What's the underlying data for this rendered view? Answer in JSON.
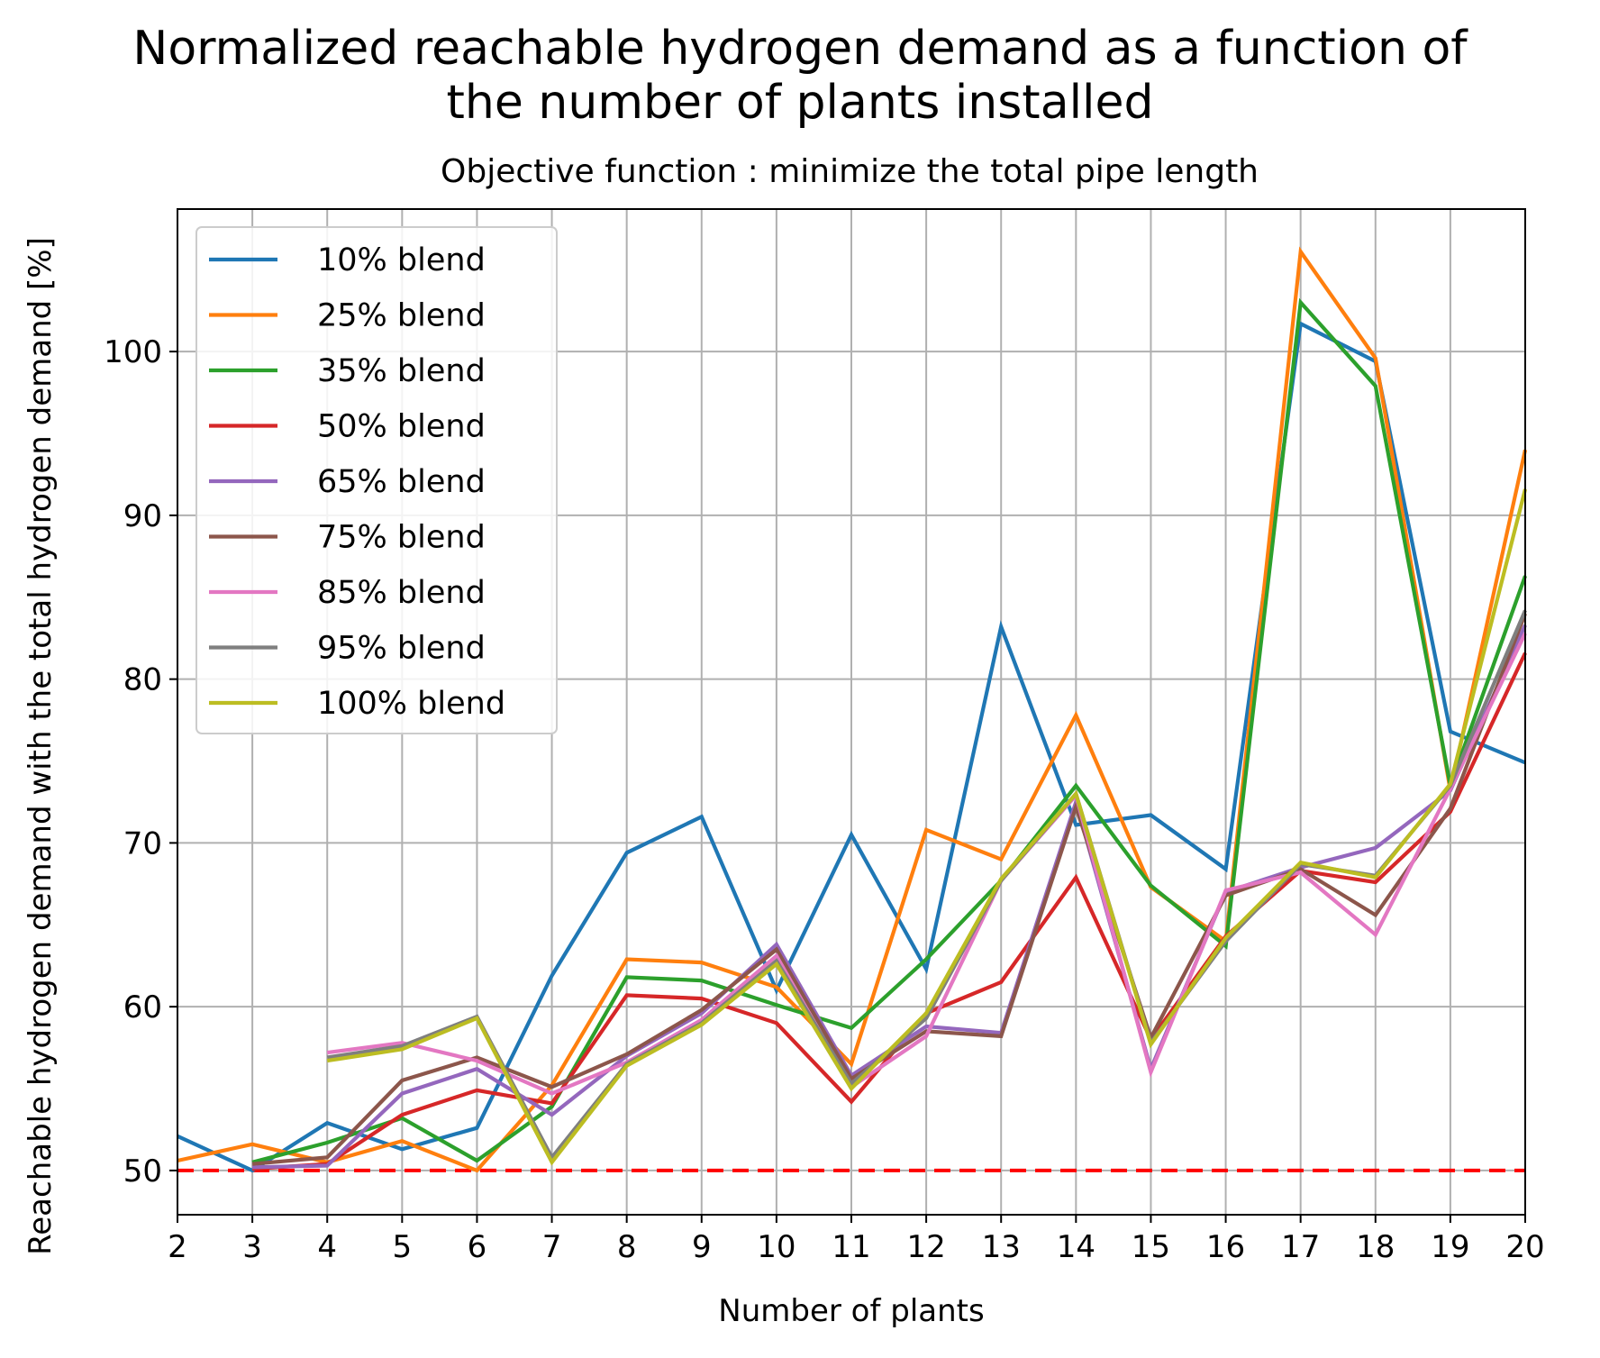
{
  "chart_data": {
    "type": "line",
    "title_lines": [
      "Normalized reachable hydrogen demand as a function of",
      "the number of plants installed"
    ],
    "subtitle": "Objective function : minimize the total pipe length",
    "xlabel": "Number of plants",
    "ylabel": "Reachable hydrogen demand with the total hydrogen demand [%]",
    "xlim": [
      2,
      20
    ],
    "ylim": [
      47.3,
      108.7
    ],
    "x_ticks": [
      2,
      3,
      4,
      5,
      6,
      7,
      8,
      9,
      10,
      11,
      12,
      13,
      14,
      15,
      16,
      17,
      18,
      19,
      20
    ],
    "y_ticks": [
      50,
      60,
      70,
      80,
      90,
      100
    ],
    "grid": true,
    "legend_position": "upper-left",
    "reference_line": {
      "y": 50,
      "color": "#ff0000",
      "style": "dashed"
    },
    "series": [
      {
        "name": "10% blend",
        "color": "#1f77b4",
        "x": [
          2,
          3,
          4,
          5,
          6,
          7,
          8,
          9,
          10,
          11,
          12,
          13,
          14,
          15,
          16,
          17,
          18,
          19,
          20
        ],
        "values": [
          52.1,
          50.0,
          52.9,
          51.3,
          52.6,
          61.9,
          69.4,
          71.6,
          61.0,
          70.5,
          62.3,
          83.2,
          71.1,
          71.7,
          68.4,
          101.7,
          99.4,
          76.8,
          74.9
        ]
      },
      {
        "name": "25% blend",
        "color": "#ff7f0e",
        "x": [
          2,
          3,
          4,
          5,
          6,
          7,
          8,
          9,
          10,
          11,
          12,
          13,
          14,
          15,
          16,
          17,
          18,
          19,
          20
        ],
        "values": [
          50.6,
          51.6,
          50.5,
          51.8,
          50.0,
          55.2,
          62.9,
          62.7,
          61.2,
          56.5,
          70.8,
          69.0,
          77.8,
          67.3,
          64.0,
          106.1,
          99.6,
          73.2,
          94.0
        ]
      },
      {
        "name": "35% blend",
        "color": "#2ca02c",
        "x": [
          3,
          4,
          5,
          6,
          7,
          8,
          9,
          10,
          11,
          12,
          13,
          14,
          15,
          16,
          17,
          18,
          19,
          20
        ],
        "values": [
          50.5,
          51.7,
          53.2,
          50.6,
          53.9,
          61.8,
          61.6,
          60.1,
          58.7,
          62.9,
          67.7,
          73.5,
          67.4,
          63.7,
          103.0,
          97.9,
          73.5,
          86.3
        ]
      },
      {
        "name": "50% blend",
        "color": "#d62728",
        "x": [
          3,
          4,
          5,
          6,
          7,
          8,
          9,
          10,
          11,
          12,
          13,
          14,
          15,
          16,
          17,
          18,
          19,
          20
        ],
        "values": [
          50.1,
          50.4,
          53.4,
          54.9,
          54.1,
          60.7,
          60.5,
          59.0,
          54.2,
          59.6,
          61.5,
          67.9,
          58.0,
          64.3,
          68.3,
          67.6,
          71.9,
          81.6
        ]
      },
      {
        "name": "65% blend",
        "color": "#9467bd",
        "x": [
          3,
          4,
          5,
          6,
          7,
          8,
          9,
          10,
          11,
          12,
          13,
          14,
          15,
          16,
          17,
          18,
          19,
          20
        ],
        "values": [
          50.2,
          50.3,
          54.7,
          56.2,
          53.4,
          57.0,
          59.6,
          63.8,
          55.8,
          58.8,
          58.4,
          72.5,
          56.2,
          67.0,
          68.5,
          69.7,
          73.2,
          83.3
        ]
      },
      {
        "name": "75% blend",
        "color": "#8c564b",
        "x": [
          3,
          4,
          5,
          6,
          7,
          8,
          9,
          10,
          11,
          12,
          13,
          14,
          15,
          16,
          17,
          18,
          19,
          20
        ],
        "values": [
          50.4,
          50.8,
          55.5,
          56.9,
          55.1,
          57.1,
          59.8,
          63.5,
          55.6,
          58.5,
          58.2,
          72.2,
          58.1,
          66.8,
          68.4,
          65.6,
          72.1,
          84.0
        ]
      },
      {
        "name": "85% blend",
        "color": "#e377c2",
        "x": [
          4,
          5,
          6,
          7,
          8,
          9,
          10,
          11,
          12,
          13,
          14,
          15,
          16,
          17,
          18,
          19,
          20
        ],
        "values": [
          57.2,
          57.8,
          56.7,
          54.7,
          56.6,
          59.2,
          63.1,
          55.1,
          58.2,
          67.7,
          72.9,
          56.0,
          67.1,
          68.2,
          64.4,
          73.3,
          82.8
        ]
      },
      {
        "name": "95% blend",
        "color": "#7f7f7f",
        "x": [
          4,
          5,
          6,
          7,
          8,
          9,
          10,
          11,
          12,
          13,
          14,
          15,
          16,
          17,
          18,
          19,
          20
        ],
        "values": [
          56.9,
          57.6,
          59.4,
          50.8,
          56.5,
          59.0,
          62.8,
          55.3,
          59.3,
          67.7,
          73.0,
          57.8,
          64.0,
          68.7,
          68.0,
          73.5,
          84.2
        ]
      },
      {
        "name": "100% blend",
        "color": "#bcbd22",
        "x": [
          4,
          5,
          6,
          7,
          8,
          9,
          10,
          11,
          12,
          13,
          14,
          15,
          16,
          17,
          18,
          19,
          20
        ],
        "values": [
          56.7,
          57.4,
          59.3,
          50.5,
          56.4,
          58.9,
          62.6,
          55.0,
          59.6,
          67.8,
          73.0,
          57.7,
          64.2,
          68.8,
          67.9,
          73.6,
          91.6
        ]
      }
    ]
  }
}
